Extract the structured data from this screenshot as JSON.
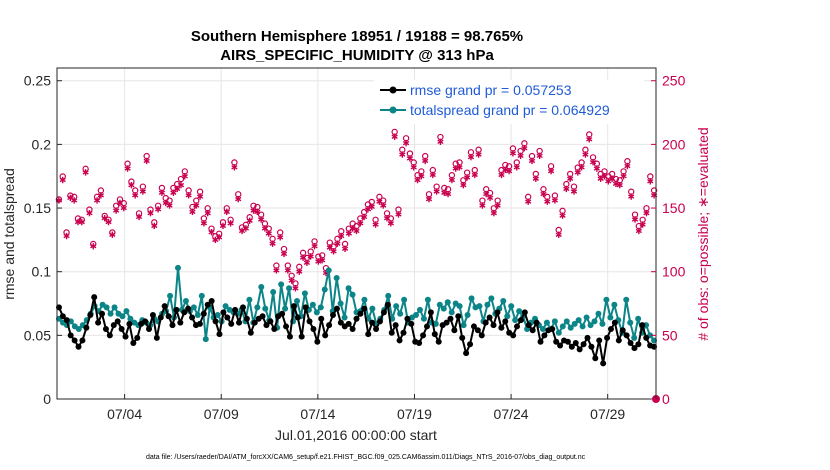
{
  "chart_data": {
    "type": "line",
    "title_line1": "Southern Hemisphere 18951 / 19188 = 98.765%",
    "title_line2": "AIRS_SPECIFIC_HUMIDITY @ 313 hPa",
    "ylabel": "rmse and totalspread",
    "ylabel_right": "# of obs: o=possible; ∗=evaluated",
    "xlabel": "Jul.01,2016 00:00:00 start",
    "footnote": "data file: /Users/raeder/DAI/ATM_forcXX/CAM6_setup/f.e21.FHIST_BGC.f09_025.CAM6assim.011/Diags_NTrS_2016-07/obs_diag_output.nc",
    "ylim": [
      0,
      0.26
    ],
    "ylim_right": [
      0,
      260
    ],
    "xlim": [
      0.5,
      31.5
    ],
    "yticks": [
      "0",
      "0.05",
      "0.1",
      "0.15",
      "0.2",
      "0.25"
    ],
    "yticks_right": [
      "0",
      "50",
      "100",
      "150",
      "200",
      "250"
    ],
    "xticks": [
      "07/04",
      "07/09",
      "07/14",
      "07/19",
      "07/24",
      "07/29"
    ],
    "xtick_days": [
      4,
      9,
      14,
      19,
      24,
      29
    ],
    "grid": true,
    "legend_position": "top-right",
    "series": [
      {
        "name": "rmse grand pr = 0.057253",
        "color": "#000000",
        "values": [
          0.072,
          0.065,
          0.062,
          0.05,
          0.046,
          0.041,
          0.046,
          0.056,
          0.066,
          0.08,
          0.06,
          0.067,
          0.055,
          0.05,
          0.058,
          0.061,
          0.055,
          0.049,
          0.059,
          0.044,
          0.048,
          0.059,
          0.061,
          0.055,
          0.066,
          0.048,
          0.064,
          0.073,
          0.065,
          0.058,
          0.07,
          0.06,
          0.068,
          0.071,
          0.064,
          0.058,
          0.059,
          0.067,
          0.074,
          0.077,
          0.061,
          0.051,
          0.068,
          0.064,
          0.059,
          0.07,
          0.06,
          0.072,
          0.063,
          0.052,
          0.06,
          0.063,
          0.065,
          0.058,
          0.061,
          0.055,
          0.065,
          0.067,
          0.057,
          0.049,
          0.073,
          0.064,
          0.049,
          0.072,
          0.061,
          0.055,
          0.045,
          0.063,
          0.05,
          0.058,
          0.066,
          0.071,
          0.06,
          0.057,
          0.059,
          0.055,
          0.063,
          0.067,
          0.071,
          0.051,
          0.06,
          0.055,
          0.061,
          0.068,
          0.074,
          0.052,
          0.058,
          0.046,
          0.052,
          0.063,
          0.059,
          0.045,
          0.044,
          0.05,
          0.057,
          0.068,
          0.051,
          0.045,
          0.058,
          0.06,
          0.063,
          0.054,
          0.065,
          0.048,
          0.036,
          0.043,
          0.057,
          0.054,
          0.05,
          0.06,
          0.064,
          0.058,
          0.068,
          0.056,
          0.061,
          0.052,
          0.05,
          0.057,
          0.062,
          0.068,
          0.058,
          0.054,
          0.06,
          0.045,
          0.05,
          0.054,
          0.055,
          0.045,
          0.042,
          0.046,
          0.045,
          0.041,
          0.044,
          0.039,
          0.043,
          0.048,
          0.041,
          0.032,
          0.046,
          0.028,
          0.048,
          0.055,
          0.06,
          0.046,
          0.054,
          0.05,
          0.044,
          0.04,
          0.043,
          0.058,
          0.048,
          0.042,
          0.041
        ]
      },
      {
        "name": "totalspread grand pr = 0.064929",
        "color": "#0b8587",
        "values": [
          0.063,
          0.06,
          0.058,
          0.061,
          0.057,
          0.055,
          0.058,
          0.062,
          0.067,
          0.073,
          0.069,
          0.074,
          0.072,
          0.067,
          0.072,
          0.067,
          0.065,
          0.069,
          0.063,
          0.06,
          0.058,
          0.062,
          0.06,
          0.058,
          0.063,
          0.061,
          0.067,
          0.069,
          0.081,
          0.064,
          0.103,
          0.07,
          0.077,
          0.069,
          0.072,
          0.066,
          0.081,
          0.047,
          0.072,
          0.064,
          0.066,
          0.061,
          0.073,
          0.07,
          0.068,
          0.067,
          0.07,
          0.061,
          0.078,
          0.06,
          0.072,
          0.088,
          0.071,
          0.062,
          0.084,
          0.056,
          0.09,
          0.071,
          0.087,
          0.061,
          0.077,
          0.065,
          0.083,
          0.07,
          0.074,
          0.068,
          0.072,
          0.086,
          0.101,
          0.069,
          0.095,
          0.075,
          0.064,
          0.087,
          0.082,
          0.068,
          0.069,
          0.078,
          0.063,
          0.071,
          0.059,
          0.063,
          0.07,
          0.081,
          0.063,
          0.073,
          0.067,
          0.078,
          0.06,
          0.064,
          0.066,
          0.07,
          0.063,
          0.078,
          0.06,
          0.059,
          0.074,
          0.071,
          0.076,
          0.068,
          0.075,
          0.073,
          0.058,
          0.066,
          0.079,
          0.072,
          0.073,
          0.061,
          0.074,
          0.079,
          0.067,
          0.071,
          0.077,
          0.065,
          0.073,
          0.062,
          0.069,
          0.065,
          0.055,
          0.06,
          0.063,
          0.058,
          0.055,
          0.06,
          0.055,
          0.061,
          0.052,
          0.057,
          0.061,
          0.056,
          0.059,
          0.062,
          0.057,
          0.064,
          0.058,
          0.061,
          0.067,
          0.059,
          0.078,
          0.064,
          0.074,
          0.062,
          0.052,
          0.078,
          0.06,
          0.048,
          0.063,
          0.052,
          0.058,
          0.05,
          0.046
        ]
      }
    ],
    "obs_series": [
      {
        "name": "possible",
        "color": "#c8004f",
        "values": [
          156,
          174,
          130,
          159,
          158,
          141,
          140,
          180,
          148,
          121,
          158,
          163,
          143,
          140,
          130,
          151,
          156,
          153,
          184,
          170,
          163,
          145,
          166,
          190,
          148,
          138,
          151,
          165,
          157,
          155,
          165,
          168,
          172,
          178,
          163,
          150,
          155,
          162,
          141,
          149,
          133,
          127,
          129,
          138,
          149,
          140,
          185,
          160,
          134,
          136,
          142,
          151,
          150,
          144,
          137,
          133,
          125,
          104,
          130,
          117,
          104,
          96,
          90,
          103,
          114,
          110,
          115,
          123,
          111,
          112,
          102,
          122,
          119,
          125,
          131,
          121,
          133,
          137,
          135,
          141,
          146,
          152,
          154,
          140,
          158,
          155,
          145,
          141,
          209,
          148,
          195,
          204,
          192,
          185,
          175,
          178,
          190,
          160,
          179,
          166,
          205,
          165,
          164,
          175,
          184,
          185,
          171,
          177,
          193,
          179,
          195,
          155,
          164,
          161,
          149,
          155,
          179,
          183,
          182,
          196,
          185,
          194,
          200,
          158,
          190,
          176,
          194,
          164,
          158,
          182,
          159,
          132,
          147,
          168,
          176,
          166,
          181,
          185,
          195,
          207,
          189,
          184,
          176,
          178,
          174,
          176,
          172,
          171,
          178,
          186,
          162,
          144,
          135,
          140,
          149,
          174,
          163
        ]
      },
      {
        "name": "evaluated",
        "color": "#c8004f",
        "values": [
          156,
          172,
          128,
          158,
          156,
          139,
          139,
          178,
          146,
          120,
          156,
          160,
          142,
          139,
          129,
          148,
          154,
          150,
          181,
          168,
          160,
          143,
          163,
          187,
          146,
          136,
          149,
          162,
          154,
          152,
          162,
          165,
          168,
          175,
          160,
          147,
          152,
          159,
          138,
          146,
          131,
          125,
          127,
          136,
          147,
          138,
          182,
          157,
          132,
          134,
          140,
          148,
          147,
          141,
          134,
          130,
          122,
          101,
          127,
          114,
          101,
          93,
          87,
          100,
          111,
          107,
          112,
          120,
          108,
          109,
          99,
          119,
          116,
          122,
          128,
          118,
          130,
          134,
          132,
          138,
          143,
          149,
          151,
          137,
          155,
          152,
          142,
          138,
          206,
          145,
          192,
          201,
          189,
          182,
          172,
          175,
          187,
          157,
          176,
          163,
          202,
          162,
          161,
          172,
          181,
          182,
          168,
          174,
          190,
          176,
          192,
          152,
          161,
          158,
          146,
          152,
          176,
          180,
          179,
          193,
          182,
          191,
          197,
          155,
          187,
          173,
          191,
          161,
          155,
          179,
          156,
          129,
          144,
          165,
          173,
          163,
          178,
          182,
          192,
          204,
          186,
          181,
          173,
          175,
          171,
          173,
          169,
          168,
          175,
          183,
          159,
          141,
          132,
          137,
          146,
          171,
          160
        ]
      }
    ]
  }
}
